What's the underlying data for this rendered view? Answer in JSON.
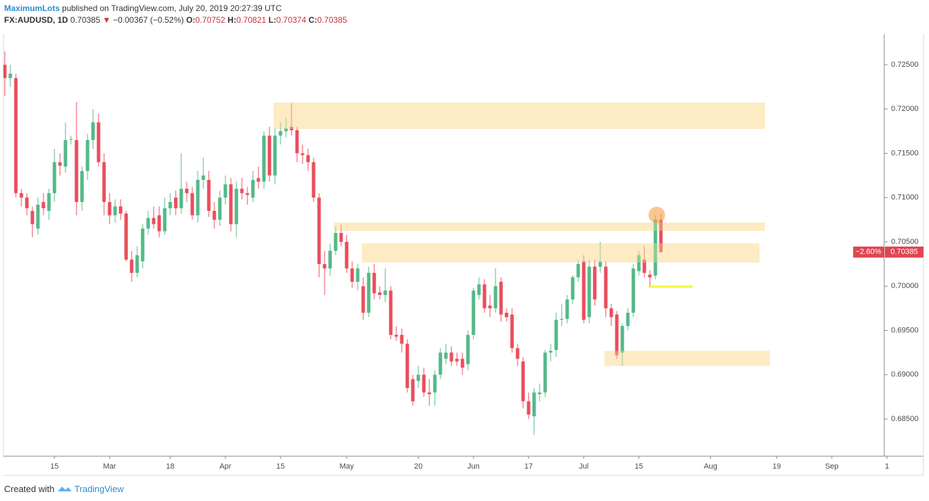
{
  "header": {
    "author": "MaximumLots",
    "published": "published on TradingView.com, July 20, 2019 20:27:39 UTC",
    "symbol": "FX:AUDUSD, 1D",
    "last": "0.70385",
    "arrow": "▼",
    "change": "−0.00367 (−0.52%)",
    "ohlc": [
      {
        "key": "O:",
        "value": "0.70752"
      },
      {
        "key": "H:",
        "value": "0.70821"
      },
      {
        "key": "L:",
        "value": "0.70374"
      },
      {
        "key": "C:",
        "value": "0.70385"
      }
    ]
  },
  "footer": {
    "text": "Created with",
    "brand": "TradingView"
  },
  "chart_data": {
    "type": "candlestick",
    "up_color": "#53b987",
    "down_color": "#eb4d5c",
    "zone_color": "#fde7b8",
    "level_color": "#f4f43a",
    "ylim": [
      0.6808,
      0.72842
    ],
    "yticks": [
      {
        "value": 0.725,
        "label": "0.72500"
      },
      {
        "value": 0.72,
        "label": "0.72000"
      },
      {
        "value": 0.715,
        "label": "0.71500"
      },
      {
        "value": 0.71,
        "label": "0.71000"
      },
      {
        "value": 0.705,
        "label": "0.70500"
      },
      {
        "value": 0.7,
        "label": "0.70000"
      },
      {
        "value": 0.695,
        "label": "0.69500"
      },
      {
        "value": 0.69,
        "label": "0.69000"
      },
      {
        "value": 0.685,
        "label": "0.68500"
      }
    ],
    "last_price_tag": {
      "change": "−2.60%",
      "price": "0.70385"
    },
    "zones": [
      {
        "range": [
          0.71776,
          0.72072
        ]
      },
      {
        "range": [
          0.70625,
          0.70718
        ]
      },
      {
        "range": [
          0.70267,
          0.70484
        ]
      },
      {
        "range": [
          0.69099,
          0.6927
        ]
      }
    ],
    "levels": [
      0.69994
    ],
    "categories": [
      null,
      null,
      null,
      null,
      null,
      null,
      null,
      null,
      null,
      "15",
      null,
      null,
      null,
      null,
      null,
      null,
      null,
      null,
      null,
      "Mar",
      null,
      null,
      null,
      null,
      null,
      null,
      null,
      null,
      null,
      null,
      "18",
      null,
      null,
      null,
      null,
      null,
      null,
      null,
      null,
      null,
      "Apr",
      null,
      null,
      null,
      null,
      null,
      null,
      null,
      null,
      null,
      "15",
      null,
      null,
      null,
      null,
      null,
      null,
      null,
      null,
      null,
      null,
      null,
      "May",
      null,
      null,
      null,
      null,
      null,
      null,
      null,
      null,
      null,
      null,
      null,
      null,
      "20",
      null,
      null,
      null,
      null,
      null,
      null,
      null,
      null,
      null,
      "Jun",
      null,
      null,
      null,
      null,
      null,
      null,
      null,
      null,
      null,
      "17",
      null,
      null,
      null,
      null,
      null,
      null,
      null,
      null,
      null,
      "Jul",
      null,
      null,
      null,
      null,
      null,
      null,
      null,
      null,
      null,
      "15",
      null,
      null,
      null,
      null,
      null,
      null,
      null,
      null,
      null,
      null,
      null,
      null,
      "Aug",
      null,
      null,
      null,
      null,
      null,
      null,
      null,
      null,
      null,
      null,
      null,
      "19",
      null,
      null,
      null,
      null,
      null,
      null,
      null,
      null,
      null,
      "Sep",
      null,
      null,
      null,
      null,
      null,
      null,
      null,
      null,
      null,
      "1"
    ],
    "open": [
      0.725,
      0.7235,
      0.7235,
      0.7105,
      0.71,
      0.7085,
      0.7065,
      0.7095,
      0.7085,
      0.7105,
      0.714,
      0.7135,
      0.7166,
      0.7165,
      0.7095,
      0.713,
      0.7165,
      0.7185,
      0.714,
      0.7095,
      0.708,
      0.709,
      0.7082,
      0.703,
      0.7015,
      0.7028,
      0.7065,
      0.7077,
      0.708,
      0.7062,
      0.7088,
      0.71,
      0.7088,
      0.711,
      0.7105,
      0.708,
      0.712,
      0.712,
      0.7085,
      0.7075,
      0.71,
      0.7115,
      0.707,
      0.711,
      0.7105,
      0.71,
      0.7122,
      0.7118,
      0.717,
      0.7125,
      0.717,
      0.7175,
      0.718,
      0.7176,
      0.715,
      0.7148,
      0.714,
      0.71,
      0.7025,
      0.702,
      0.704,
      0.706,
      0.705,
      0.702,
      0.7005,
      0.7,
      0.697,
      0.7015,
      0.6993,
      0.699,
      0.6995,
      0.6945,
      0.6945,
      0.6935,
      0.6895,
      0.6893,
      0.69,
      0.688,
      0.688,
      0.69,
      0.6918,
      0.6925,
      0.6918,
      0.6918,
      0.6912,
      0.6945,
      0.699,
      0.7002,
      0.6978,
      0.6975,
      0.7005,
      0.697,
      0.6968,
      0.693,
      0.6915,
      0.687,
      0.6853,
      0.6878,
      0.688,
      0.6925,
      0.6928,
      0.6962,
      0.6963,
      0.6985,
      0.701,
      0.7028,
      0.6965,
      0.7022,
      0.7022,
      0.7022,
      0.6975,
      0.6968,
      0.6925,
      0.6955,
      0.697,
      0.7017,
      0.703,
      0.7013,
      0.7012,
      0.70752,
      null,
      null,
      null,
      null,
      null,
      null,
      null,
      null,
      null,
      null,
      null,
      null,
      null,
      null,
      null,
      null,
      null,
      null,
      null,
      null,
      null,
      null,
      null,
      null,
      null,
      null,
      null,
      null,
      null,
      null,
      null,
      null,
      null,
      null,
      null,
      null,
      null,
      null,
      null,
      null,
      null
    ],
    "high": [
      0.7265,
      0.725,
      0.724,
      0.711,
      0.7105,
      0.709,
      0.71,
      0.7105,
      0.711,
      0.7155,
      0.715,
      0.7185,
      0.717,
      0.7208,
      0.7135,
      0.7172,
      0.72,
      0.7195,
      0.715,
      0.7105,
      0.7098,
      0.7098,
      0.7085,
      0.704,
      0.7045,
      0.707,
      0.7085,
      0.709,
      0.709,
      0.71,
      0.7105,
      0.7108,
      0.715,
      0.7118,
      0.7112,
      0.713,
      0.7145,
      0.713,
      0.7095,
      0.7108,
      0.7125,
      0.7122,
      0.7118,
      0.7122,
      0.7112,
      0.713,
      0.7135,
      0.7175,
      0.718,
      0.7178,
      0.7185,
      0.719,
      0.7207,
      0.718,
      0.716,
      0.7155,
      0.7145,
      0.7105,
      0.704,
      0.7048,
      0.7068,
      0.707,
      0.7058,
      0.7028,
      0.7025,
      0.701,
      0.7022,
      0.7025,
      0.7,
      0.702,
      0.7,
      0.6955,
      0.6952,
      0.694,
      0.69,
      0.691,
      0.6908,
      0.6895,
      0.6905,
      0.693,
      0.6935,
      0.6932,
      0.6925,
      0.6925,
      0.695,
      0.6998,
      0.701,
      0.7008,
      0.699,
      0.702,
      0.701,
      0.6975,
      0.6975,
      0.6935,
      0.692,
      0.688,
      0.6885,
      0.689,
      0.6928,
      0.6935,
      0.697,
      0.698,
      0.699,
      0.7012,
      0.703,
      0.7035,
      0.703,
      0.703,
      0.705,
      0.7028,
      0.698,
      0.6972,
      0.6958,
      0.6975,
      0.7025,
      0.704,
      0.7045,
      0.7018,
      0.708,
      0.70821,
      null,
      null,
      null,
      null,
      null,
      null,
      null,
      null,
      null,
      null,
      null,
      null,
      null,
      null,
      null,
      null,
      null,
      null,
      null,
      null,
      null,
      null,
      null,
      null,
      null,
      null,
      null,
      null,
      null,
      null,
      null,
      null,
      null,
      null,
      null,
      null,
      null,
      null,
      null,
      null,
      null
    ],
    "low": [
      0.7215,
      0.7225,
      0.71,
      0.709,
      0.708,
      0.7055,
      0.7058,
      0.708,
      0.7075,
      0.7095,
      0.7125,
      0.7128,
      0.716,
      0.708,
      0.7085,
      0.712,
      0.7155,
      0.7135,
      0.708,
      0.707,
      0.7072,
      0.7075,
      0.7028,
      0.7005,
      0.701,
      0.702,
      0.7058,
      0.7065,
      0.7055,
      0.7058,
      0.708,
      0.708,
      0.7082,
      0.7095,
      0.7075,
      0.7072,
      0.711,
      0.7078,
      0.7065,
      0.7068,
      0.7092,
      0.7062,
      0.7055,
      0.7098,
      0.7092,
      0.7095,
      0.711,
      0.711,
      0.7118,
      0.7115,
      0.716,
      0.7168,
      0.717,
      0.714,
      0.7138,
      0.713,
      0.7095,
      0.701,
      0.699,
      0.7012,
      0.7035,
      0.7045,
      0.7015,
      0.6998,
      0.6995,
      0.6962,
      0.6965,
      0.6985,
      0.6985,
      0.6982,
      0.694,
      0.6938,
      0.6925,
      0.688,
      0.6865,
      0.6885,
      0.6875,
      0.6865,
      0.6865,
      0.6895,
      0.6912,
      0.691,
      0.691,
      0.69,
      0.6905,
      0.694,
      0.6985,
      0.697,
      0.6965,
      0.697,
      0.696,
      0.696,
      0.6925,
      0.691,
      0.6862,
      0.685,
      0.6832,
      0.687,
      0.6875,
      0.6915,
      0.692,
      0.6955,
      0.6958,
      0.698,
      0.7005,
      0.6958,
      0.6958,
      0.6978,
      0.7015,
      0.6965,
      0.6955,
      0.6918,
      0.691,
      0.695,
      0.6965,
      0.7012,
      0.701,
      0.7,
      0.7008,
      0.70374,
      null,
      null,
      null,
      null,
      null,
      null,
      null,
      null,
      null,
      null,
      null,
      null,
      null,
      null,
      null,
      null,
      null,
      null,
      null,
      null,
      null,
      null,
      null,
      null,
      null,
      null,
      null,
      null,
      null,
      null,
      null,
      null,
      null,
      null,
      null,
      null,
      null,
      null,
      null,
      null,
      null
    ],
    "close": [
      0.7235,
      0.724,
      0.7105,
      0.71,
      0.7088,
      0.707,
      0.7092,
      0.7088,
      0.7105,
      0.714,
      0.7136,
      0.7165,
      0.7166,
      0.7095,
      0.713,
      0.7165,
      0.7185,
      0.714,
      0.7095,
      0.708,
      0.709,
      0.7082,
      0.703,
      0.7015,
      0.7035,
      0.7065,
      0.7077,
      0.707,
      0.7062,
      0.7088,
      0.7095,
      0.7088,
      0.711,
      0.7105,
      0.708,
      0.712,
      0.7125,
      0.7085,
      0.7075,
      0.71,
      0.7115,
      0.707,
      0.711,
      0.7105,
      0.7103,
      0.712,
      0.7118,
      0.717,
      0.7125,
      0.717,
      0.7175,
      0.7178,
      0.7176,
      0.715,
      0.7148,
      0.714,
      0.71,
      0.7025,
      0.702,
      0.704,
      0.706,
      0.705,
      0.702,
      0.7005,
      0.702,
      0.697,
      0.7015,
      0.6992,
      0.699,
      0.6995,
      0.6945,
      0.6943,
      0.6935,
      0.6885,
      0.687,
      0.69,
      0.688,
      0.6878,
      0.69,
      0.6925,
      0.6925,
      0.6915,
      0.6915,
      0.6908,
      0.6945,
      0.6995,
      0.7002,
      0.6975,
      0.6975,
      0.7,
      0.6968,
      0.6965,
      0.693,
      0.6918,
      0.687,
      0.6855,
      0.688,
      0.688,
      0.6925,
      0.6927,
      0.6962,
      0.6963,
      0.6985,
      0.701,
      0.7025,
      0.6962,
      0.7022,
      0.6985,
      0.7028,
      0.6975,
      0.6965,
      0.6922,
      0.6955,
      0.697,
      0.702,
      0.7035,
      0.7015,
      0.701,
      0.7075,
      0.70385,
      null,
      null,
      null,
      null,
      null,
      null,
      null,
      null,
      null,
      null,
      null,
      null,
      null,
      null,
      null,
      null,
      null,
      null,
      null,
      null,
      null,
      null,
      null,
      null,
      null,
      null,
      null,
      null,
      null,
      null,
      null,
      null,
      null,
      null,
      null,
      null,
      null,
      null,
      null,
      null,
      null
    ]
  }
}
